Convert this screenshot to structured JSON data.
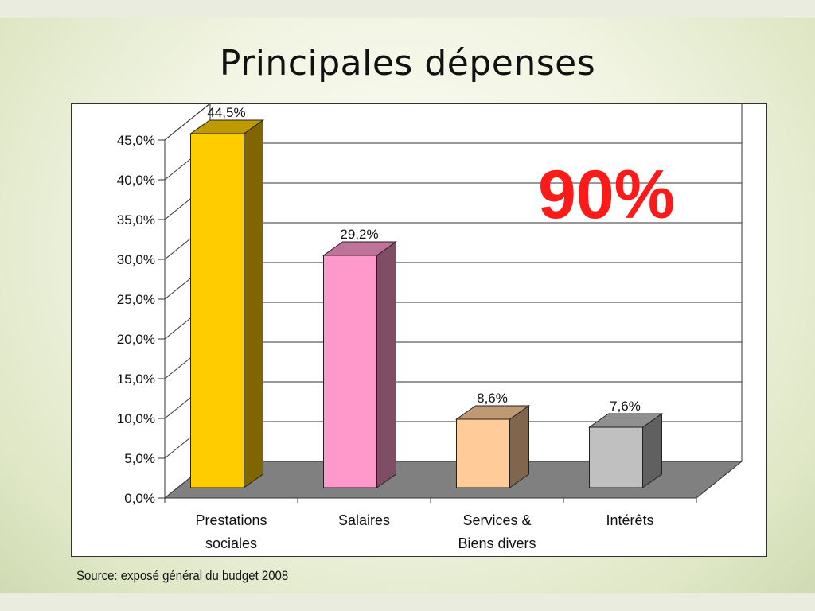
{
  "slide": {
    "title": "Principales dépenses",
    "highlight": "90%",
    "source": "Source: exposé général du budget 2008"
  },
  "chart_data": {
    "type": "bar",
    "style": "3d",
    "categories": [
      [
        "Prestations",
        "sociales"
      ],
      [
        "Salaires"
      ],
      [
        "Services &",
        "Biens divers"
      ],
      [
        "Intérêts"
      ]
    ],
    "values": [
      44.5,
      29.2,
      8.6,
      7.6
    ],
    "data_labels": [
      "44,5%",
      "29,2%",
      "8,6%",
      "7,6%"
    ],
    "y_ticks": [
      "0,0%",
      "5,0%",
      "10,0%",
      "15,0%",
      "20,0%",
      "25,0%",
      "30,0%",
      "35,0%",
      "40,0%",
      "45,0%"
    ],
    "ylim": [
      0,
      45
    ],
    "grid": true,
    "legend": "none",
    "colors": {
      "bars": [
        "#ffcc00",
        "#ff99cc",
        "#ffcc99",
        "#c0c0c0"
      ],
      "sides": [
        "#806600",
        "#804d66",
        "#80664d",
        "#606060"
      ],
      "tops": [
        "#bf9900",
        "#bf7399",
        "#bf9973",
        "#909090"
      ],
      "floor": "#808080",
      "highlight": "#ff1a1a"
    }
  }
}
